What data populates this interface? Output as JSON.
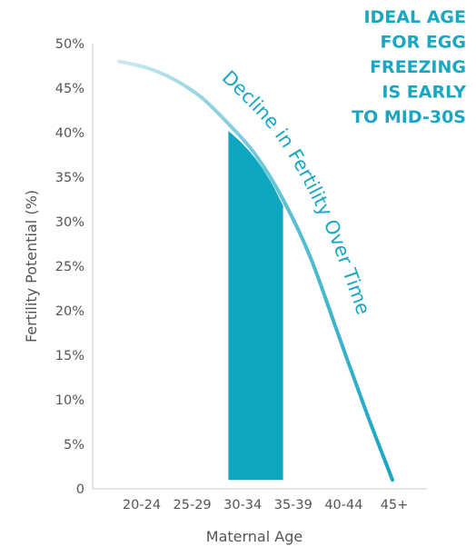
{
  "chart_data": {
    "type": "area",
    "title": "",
    "xlabel": "Maternal Age",
    "ylabel": "Fertility Potential (%)",
    "ylim": [
      0,
      50
    ],
    "y_ticks": [
      "0",
      "5%",
      "10%",
      "15%",
      "20%",
      "25%",
      "30%",
      "35%",
      "40%",
      "45%",
      "50%"
    ],
    "categories": [
      "20-24",
      "25-29",
      "30-34",
      "35-39",
      "40-44",
      "45+"
    ],
    "curve_label": "Decline in Fertility Over Time",
    "series": [
      {
        "x": [
          20,
          22.5,
          25,
          27.5,
          30,
          32.5,
          35,
          37.5,
          40,
          42.5,
          45
        ],
        "values": [
          48,
          47.3,
          46,
          44,
          41,
          37.5,
          32.5,
          26,
          17.5,
          9,
          1
        ]
      }
    ],
    "highlight": {
      "x_range": [
        30,
        35
      ],
      "values_x": [
        30,
        31,
        32,
        33,
        34,
        35
      ],
      "values": [
        40.2,
        39.1,
        37.8,
        36.2,
        34.2,
        31.8
      ]
    },
    "callout": [
      "IDEAL AGE",
      "FOR EGG",
      "FREEZING",
      "IS EARLY",
      "TO MID-30S"
    ],
    "colors": {
      "curve_start": "#cfe9ef",
      "curve_end": "#12a3bf",
      "highlight": "#0fa6bf",
      "text_accent": "#1aa7c2",
      "axis": "#c8c8c8",
      "tick_text": "#555555"
    }
  }
}
